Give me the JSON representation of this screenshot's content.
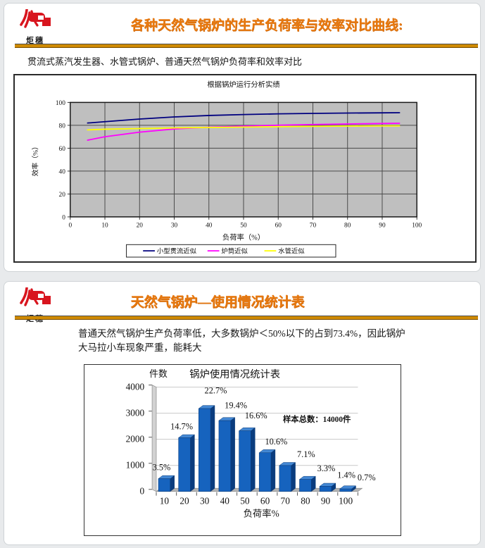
{
  "brand": {
    "logo_text": "炬穗",
    "flame_color": "#D8151E"
  },
  "slide1": {
    "title": "各种天然气锅炉的生产负荷率与效率对比曲线:",
    "title_color": "#E8790F",
    "subtitle": "贯流式蒸汽发生器、水管式锅炉、普通天然气锅炉负荷率和效率对比"
  },
  "slide2": {
    "title": "天然气锅炉—使用情况统计表",
    "body_text": "普通天然气锅炉生产负荷率低，大多数锅炉＜50%以下的占到73.4%，因此锅炉大马拉小车现象严重，能耗大"
  },
  "chart_data": [
    {
      "type": "line",
      "title": "根据锅炉运行分析实绩",
      "xlabel": "负荷率（%）",
      "ylabel": "效率（%）",
      "xlim": [
        0,
        100
      ],
      "ylim": [
        0,
        100
      ],
      "x_ticks": [
        0,
        10,
        20,
        30,
        40,
        50,
        60,
        70,
        80,
        90,
        100
      ],
      "y_ticks": [
        0,
        20,
        40,
        60,
        80,
        100
      ],
      "grid": true,
      "plot_bg": "#bfbfbf",
      "legend_position": "bottom",
      "x": [
        5,
        10,
        20,
        30,
        40,
        50,
        60,
        70,
        80,
        90,
        95
      ],
      "series": [
        {
          "name": "小型贯流近似",
          "color": "#00007F",
          "values": [
            82,
            83.2,
            85.5,
            87.3,
            88.6,
            89.4,
            90,
            90.4,
            90.7,
            90.9,
            91
          ]
        },
        {
          "name": "炉筒近似",
          "color": "#FF00FF",
          "values": [
            67,
            70,
            74,
            76.8,
            78.3,
            79.3,
            80.1,
            80.7,
            81.2,
            81.6,
            81.8
          ]
        },
        {
          "name": "水管近似",
          "color": "#FFFF00",
          "values": [
            76,
            76.6,
            77.2,
            77.7,
            78.1,
            78.5,
            78.8,
            79.1,
            79.3,
            79.5,
            79.5
          ]
        }
      ]
    },
    {
      "type": "bar",
      "title": "锅炉使用情况统计表",
      "y_unit_label": "件数",
      "xlabel": "负荷率%",
      "categories": [
        "10",
        "20",
        "30",
        "40",
        "50",
        "60",
        "70",
        "80",
        "90",
        "100"
      ],
      "values": [
        490,
        2058,
        3178,
        2716,
        2324,
        1484,
        994,
        462,
        196,
        98
      ],
      "percent_labels": [
        "3.5%",
        "14.7%",
        "22.7%",
        "19.4%",
        "16.6%",
        "10.6%",
        "7.1%",
        "3.3%",
        "1.4%",
        "0.7%"
      ],
      "ylim": [
        0,
        4000
      ],
      "y_ticks": [
        0,
        1000,
        2000,
        3000,
        4000
      ],
      "annotation": "样本总数：14000件",
      "annotation_color": "#FF0000",
      "bar_color": "#1663BE",
      "bar_side_color": "#0A3C7E",
      "bar_top_color": "#4488D4"
    }
  ]
}
